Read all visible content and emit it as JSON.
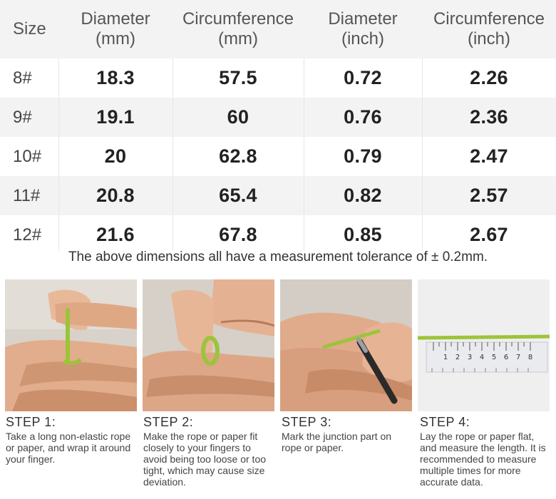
{
  "table": {
    "headers": [
      {
        "line1": "Size",
        "line2": ""
      },
      {
        "line1": "Diameter",
        "line2": "(mm)"
      },
      {
        "line1": "Circumference",
        "line2": "(mm)"
      },
      {
        "line1": "Diameter",
        "line2": "(inch)"
      },
      {
        "line1": "Circumference",
        "line2": "(inch)"
      }
    ],
    "rows": [
      {
        "size": "8#",
        "dia_mm": "18.3",
        "circ_mm": "57.5",
        "dia_in": "0.72",
        "circ_in": "2.26"
      },
      {
        "size": "9#",
        "dia_mm": "19.1",
        "circ_mm": "60",
        "dia_in": "0.76",
        "circ_in": "2.36"
      },
      {
        "size": "10#",
        "dia_mm": "20",
        "circ_mm": "62.8",
        "dia_in": "0.79",
        "circ_in": "2.47"
      },
      {
        "size": "11#",
        "dia_mm": "20.8",
        "circ_mm": "65.4",
        "dia_in": "0.82",
        "circ_in": "2.57"
      },
      {
        "size": "12#",
        "dia_mm": "21.6",
        "circ_mm": "67.8",
        "dia_in": "0.85",
        "circ_in": "2.67"
      }
    ]
  },
  "tolerance_note": "The above dimensions all have a measurement tolerance of ± 0.2mm.",
  "steps": [
    {
      "title": "STEP 1:",
      "text": "Take a long non-elastic rope or paper, and wrap it around your finger."
    },
    {
      "title": "STEP 2:",
      "text": "Make the rope or paper fit closely to your fingers to avoid being too loose or too tight, which may cause size deviation."
    },
    {
      "title": "STEP 3:",
      "text": "Mark the junction part on rope or paper."
    },
    {
      "title": "STEP 4:",
      "text": "Lay the rope or paper flat, and measure the length. It is recommended to measure multiple times for more accurate data."
    }
  ],
  "ruler_ticks": [
    "1",
    "2",
    "3",
    "4",
    "5",
    "6",
    "7",
    "8"
  ],
  "colors": {
    "header_bg": "#f3f3f3",
    "rope_green": "#9cc43a",
    "skin": "#e4b596"
  }
}
